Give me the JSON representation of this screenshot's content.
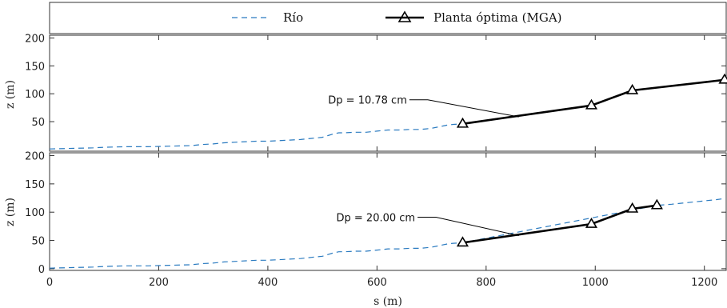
{
  "chart_data": {
    "type": "line",
    "legend": {
      "placement": "top",
      "entries": [
        {
          "label": "Río",
          "style": "dashed",
          "color": "#2b7bc0"
        },
        {
          "label": "Planta óptima (MGA)",
          "style": "solid-triangle",
          "color": "#000000"
        }
      ]
    },
    "xlabel": "s (m)",
    "xlim": [
      0,
      1240
    ],
    "x_ticks": [
      0,
      200,
      400,
      600,
      800,
      1000,
      1200
    ],
    "grid": false,
    "panels": [
      {
        "ylabel": "z (m)",
        "ylim": [
          -3,
          205
        ],
        "y_ticks": [
          50,
          100,
          150,
          200
        ],
        "annotation": {
          "text": "Dp = 10.78 cm",
          "x": 655,
          "y": 82
        },
        "series": [
          {
            "name": "Río",
            "x": [
              0,
              40,
              80,
              100,
              140,
              180,
              220,
              260,
              280,
              300,
              320,
              340,
              360,
              380,
              400,
              420,
              440,
              460,
              480,
              500,
              510,
              520,
              530,
              540,
              560,
              580,
              590,
              600,
              610,
              620,
              640,
              660,
              680,
              690,
              700,
              710,
              720,
              730,
              740,
              757
            ],
            "y": [
              1,
              2,
              3,
              4,
              5,
              5,
              6,
              7,
              9,
              10,
              12,
              13,
              14,
              15,
              15,
              16,
              17,
              18,
              20,
              22,
              25,
              28,
              30,
              30,
              31,
              31,
              32,
              33,
              34,
              35,
              35,
              36,
              36,
              37,
              38,
              40,
              42,
              44,
              45,
              46
            ]
          },
          {
            "name": "Planta óptima (MGA)",
            "x": [
              757,
              993,
              1068,
              1237
            ],
            "y": [
              46,
              79,
              106,
              125
            ]
          }
        ]
      },
      {
        "ylabel": "z (m)",
        "ylim": [
          -3,
          205
        ],
        "y_ticks": [
          0,
          50,
          100,
          150,
          200
        ],
        "annotation": {
          "text": "Dp = 20.00 cm",
          "x": 670,
          "y": 84
        },
        "series": [
          {
            "name": "Río",
            "x": [
              0,
              40,
              80,
              100,
              140,
              180,
              220,
              260,
              280,
              300,
              320,
              340,
              360,
              380,
              400,
              420,
              440,
              460,
              480,
              500,
              510,
              520,
              530,
              540,
              560,
              580,
              590,
              600,
              610,
              620,
              640,
              660,
              680,
              690,
              700,
              710,
              720,
              730,
              740,
              757,
              1113,
              1140,
              1160,
              1180,
              1200,
              1220,
              1237
            ],
            "y": [
              1,
              2,
              3,
              4,
              5,
              5,
              6,
              7,
              9,
              10,
              12,
              13,
              14,
              15,
              15,
              16,
              17,
              18,
              20,
              22,
              25,
              28,
              30,
              30,
              31,
              31,
              32,
              33,
              34,
              35,
              35,
              36,
              36,
              37,
              38,
              40,
              42,
              44,
              45,
              46,
              112,
              114,
              116,
              118,
              120,
              122,
              124
            ]
          },
          {
            "name": "Planta óptima (MGA)",
            "x": [
              757,
              993,
              1068,
              1113
            ],
            "y": [
              46,
              79,
              106,
              112
            ]
          }
        ]
      }
    ]
  }
}
